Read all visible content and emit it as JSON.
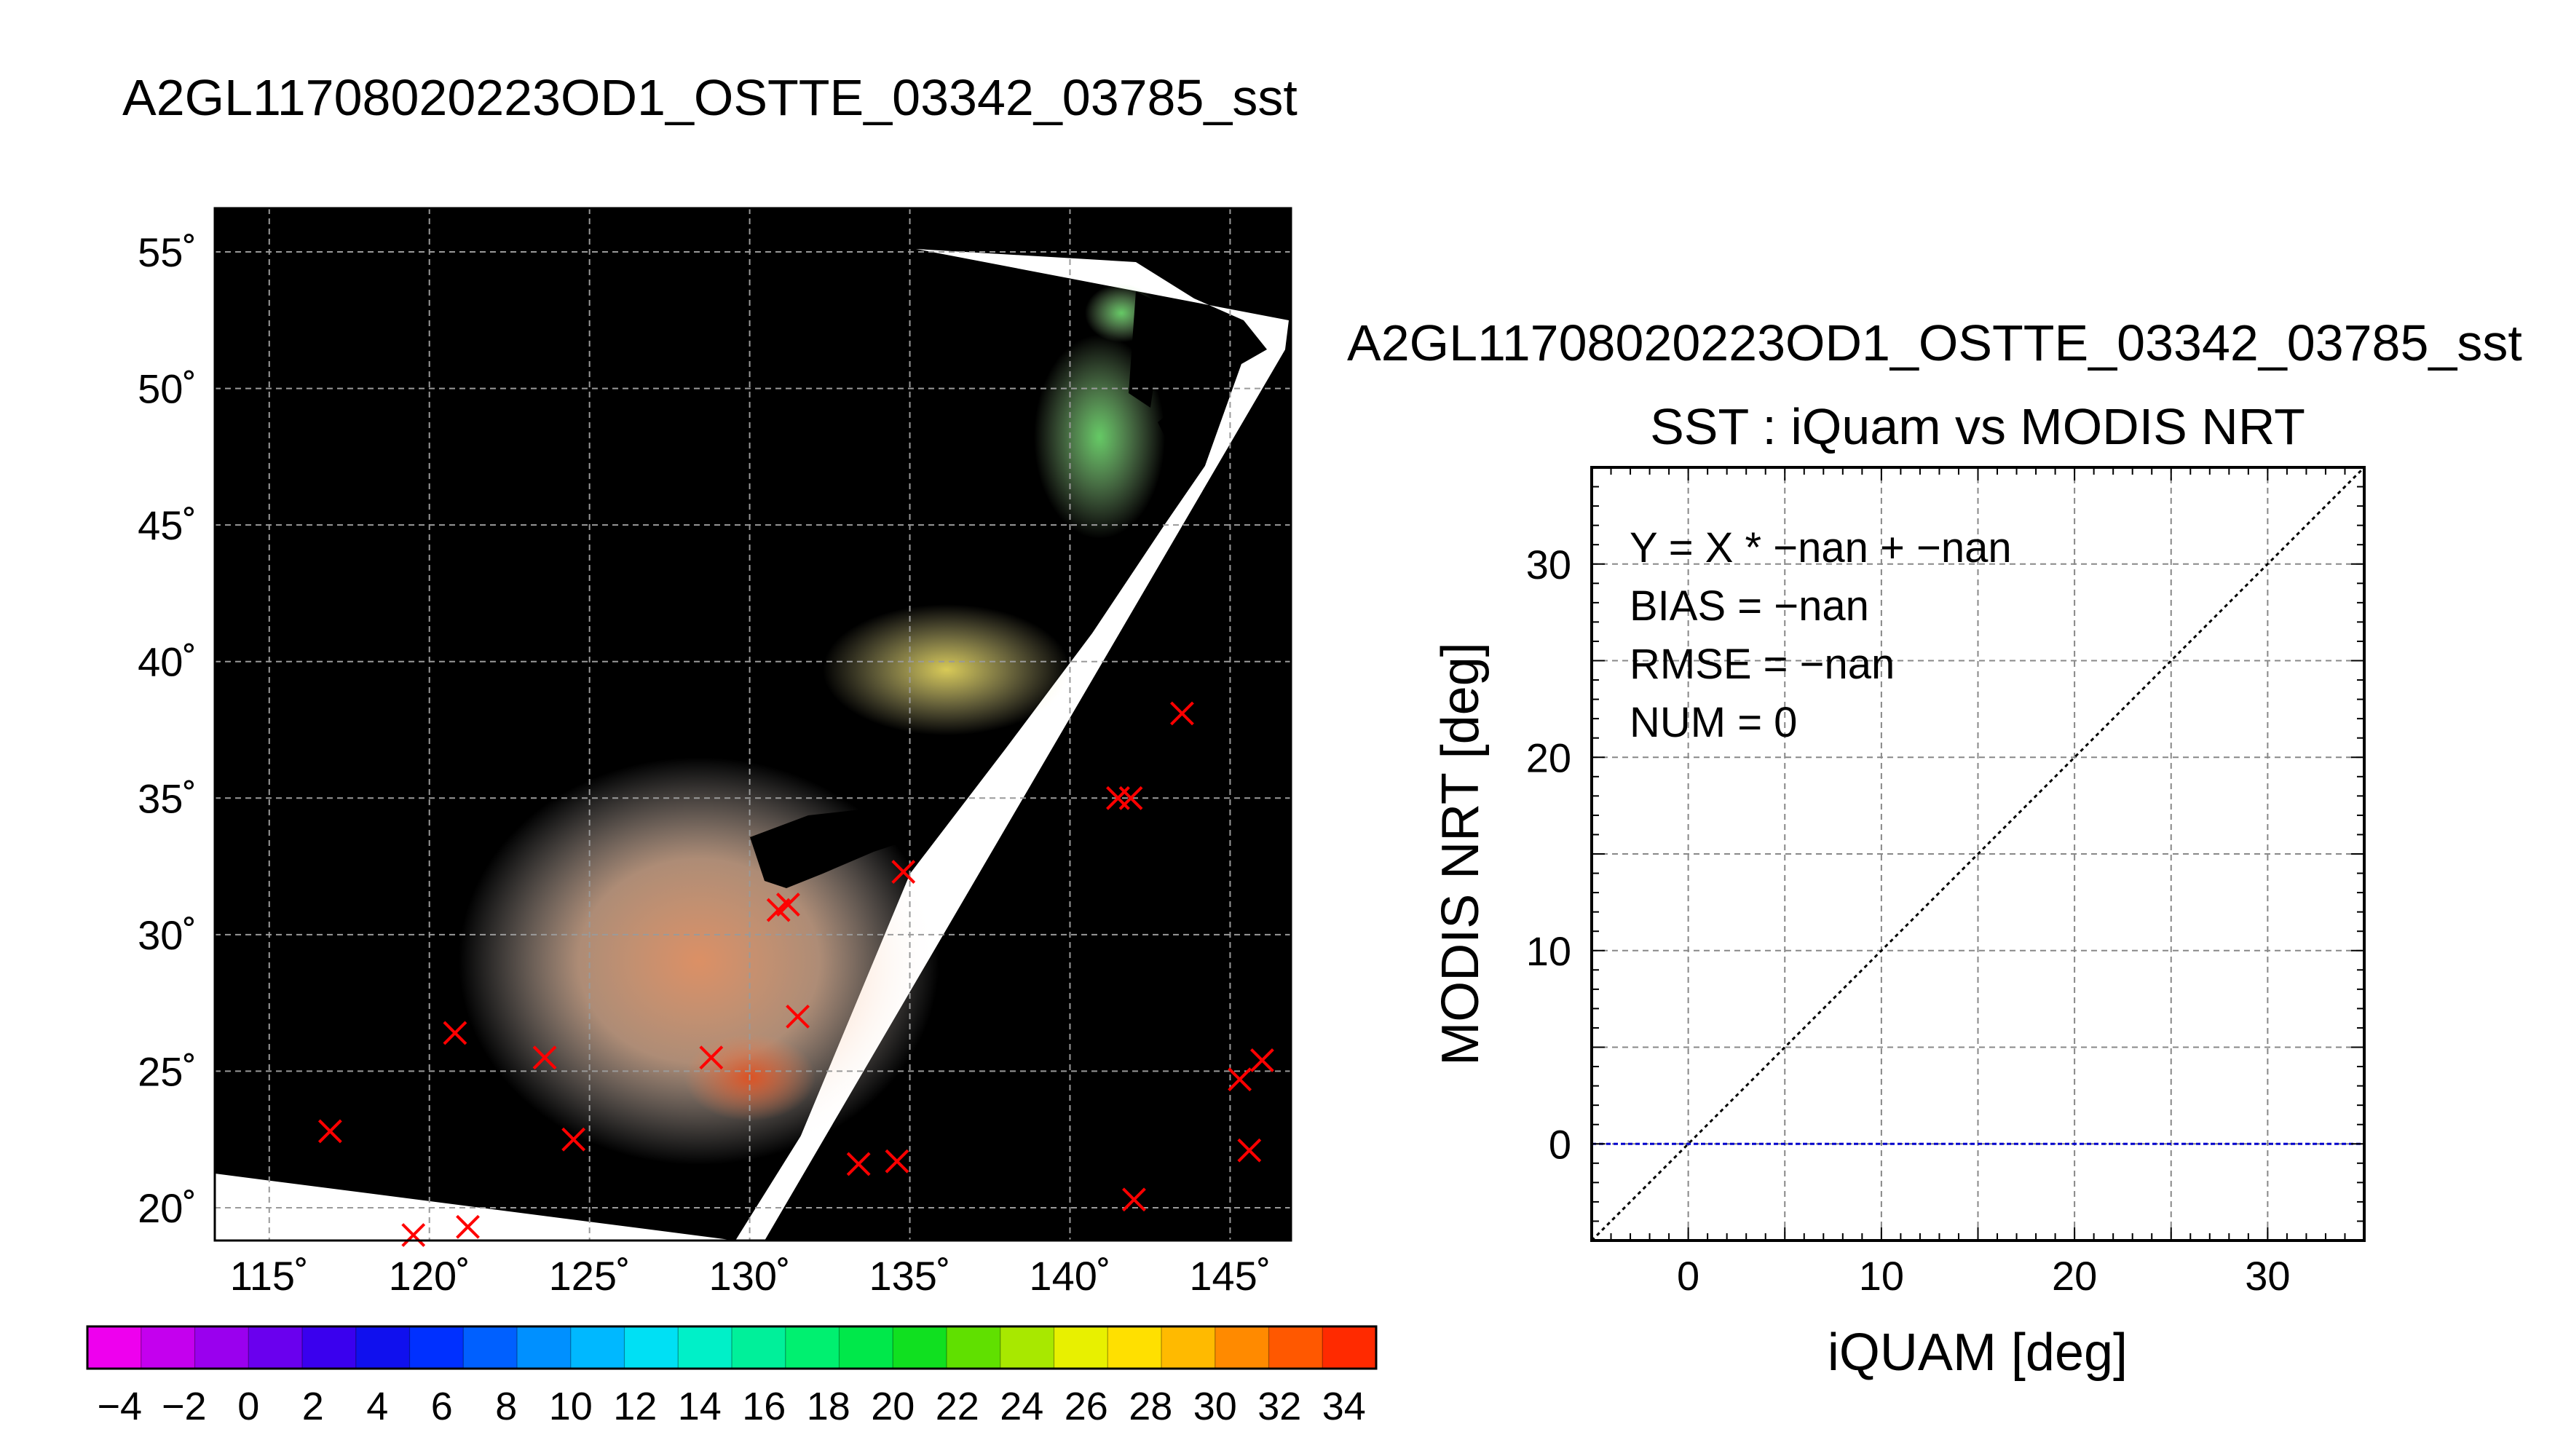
{
  "map_panel": {
    "title": "A2GL11708020223OD1_OSTTE_03342_03785_sst"
  },
  "scatter_panel": {
    "header": "A2GL11708020223OD1_OSTTE_03342_03785_sst",
    "title": "SST : iQuam vs MODIS NRT",
    "stats": [
      "Y = X * −nan + −nan",
      "BIAS = −nan",
      "RMSE = −nan",
      "NUM = 0"
    ]
  },
  "colors": {
    "background_map": "#000000",
    "land": "#ffffff",
    "marker": "#ff0000",
    "bias_line": "#0000cc"
  },
  "chart_data": [
    {
      "type": "scatter",
      "name": "sst-map",
      "title": "A2GL11708020223OD1_OSTTE_03342_03785_sst",
      "x_label_ticks": [
        "115˚",
        "120˚",
        "125˚",
        "130˚",
        "135˚",
        "140˚",
        "145˚"
      ],
      "x_ticks": [
        115,
        120,
        125,
        130,
        135,
        140,
        145
      ],
      "y_label_ticks": [
        "20˚",
        "25˚",
        "30˚",
        "35˚",
        "40˚",
        "45˚",
        "50˚",
        "55˚"
      ],
      "y_ticks": [
        20,
        25,
        30,
        35,
        40,
        45,
        50,
        55
      ],
      "xlim": [
        113.3,
        146.9
      ],
      "ylim": [
        18.8,
        56.6
      ],
      "grid": true,
      "markers": [
        {
          "lon": 116.9,
          "lat": 22.8
        },
        {
          "lon": 119.5,
          "lat": 19.0
        },
        {
          "lon": 121.2,
          "lat": 19.3
        },
        {
          "lon": 120.8,
          "lat": 26.4
        },
        {
          "lon": 123.6,
          "lat": 25.5
        },
        {
          "lon": 124.5,
          "lat": 22.5
        },
        {
          "lon": 128.8,
          "lat": 25.5
        },
        {
          "lon": 130.9,
          "lat": 30.9
        },
        {
          "lon": 131.2,
          "lat": 31.1
        },
        {
          "lon": 131.5,
          "lat": 27.0
        },
        {
          "lon": 133.4,
          "lat": 21.6
        },
        {
          "lon": 134.6,
          "lat": 21.7
        },
        {
          "lon": 134.8,
          "lat": 32.3
        },
        {
          "lon": 141.5,
          "lat": 35.0
        },
        {
          "lon": 141.9,
          "lat": 35.0
        },
        {
          "lon": 143.5,
          "lat": 38.1
        },
        {
          "lon": 142.0,
          "lat": 20.3
        },
        {
          "lon": 145.3,
          "lat": 24.7
        },
        {
          "lon": 146.0,
          "lat": 25.4
        },
        {
          "lon": 145.6,
          "lat": 22.1
        }
      ]
    },
    {
      "type": "colorbar",
      "name": "sst-colorbar",
      "tick_labels": [
        "−4",
        "−2",
        "0",
        "2",
        "4",
        "6",
        "8",
        "10",
        "12",
        "14",
        "16",
        "18",
        "20",
        "22",
        "24",
        "26",
        "28",
        "30",
        "32",
        "34"
      ],
      "range": [
        -5,
        35
      ],
      "step": 2,
      "colors": [
        "#ee00ee",
        "#c400ee",
        "#9a00ee",
        "#6a00ee",
        "#3a00ee",
        "#1010ee",
        "#0030ff",
        "#0060ff",
        "#0090ff",
        "#00b8ff",
        "#00e0f4",
        "#00f0c8",
        "#00f09a",
        "#00f070",
        "#00e84a",
        "#10e020",
        "#60e000",
        "#a8e800",
        "#e8f000",
        "#ffe000",
        "#ffba00",
        "#ff8a00",
        "#ff5800",
        "#ff2a00"
      ]
    },
    {
      "type": "scatter",
      "name": "sst-comparison",
      "title": "SST : iQuam vs MODIS NRT",
      "xlabel": "iQUAM [deg]",
      "ylabel": "MODIS NRT [deg]",
      "xlim": [
        -5,
        35
      ],
      "ylim": [
        -5,
        35
      ],
      "x_ticks": [
        0,
        10,
        20,
        30
      ],
      "y_ticks": [
        0,
        10,
        20,
        30
      ],
      "x_tick_labels": [
        "0",
        "10",
        "20",
        "30"
      ],
      "y_tick_labels": [
        "0",
        "10",
        "20",
        "30"
      ],
      "grid_step": 5,
      "points": [],
      "identity_line": [
        [
          -5,
          -5
        ],
        [
          35,
          35
        ]
      ],
      "bias_line_y": 0
    }
  ]
}
